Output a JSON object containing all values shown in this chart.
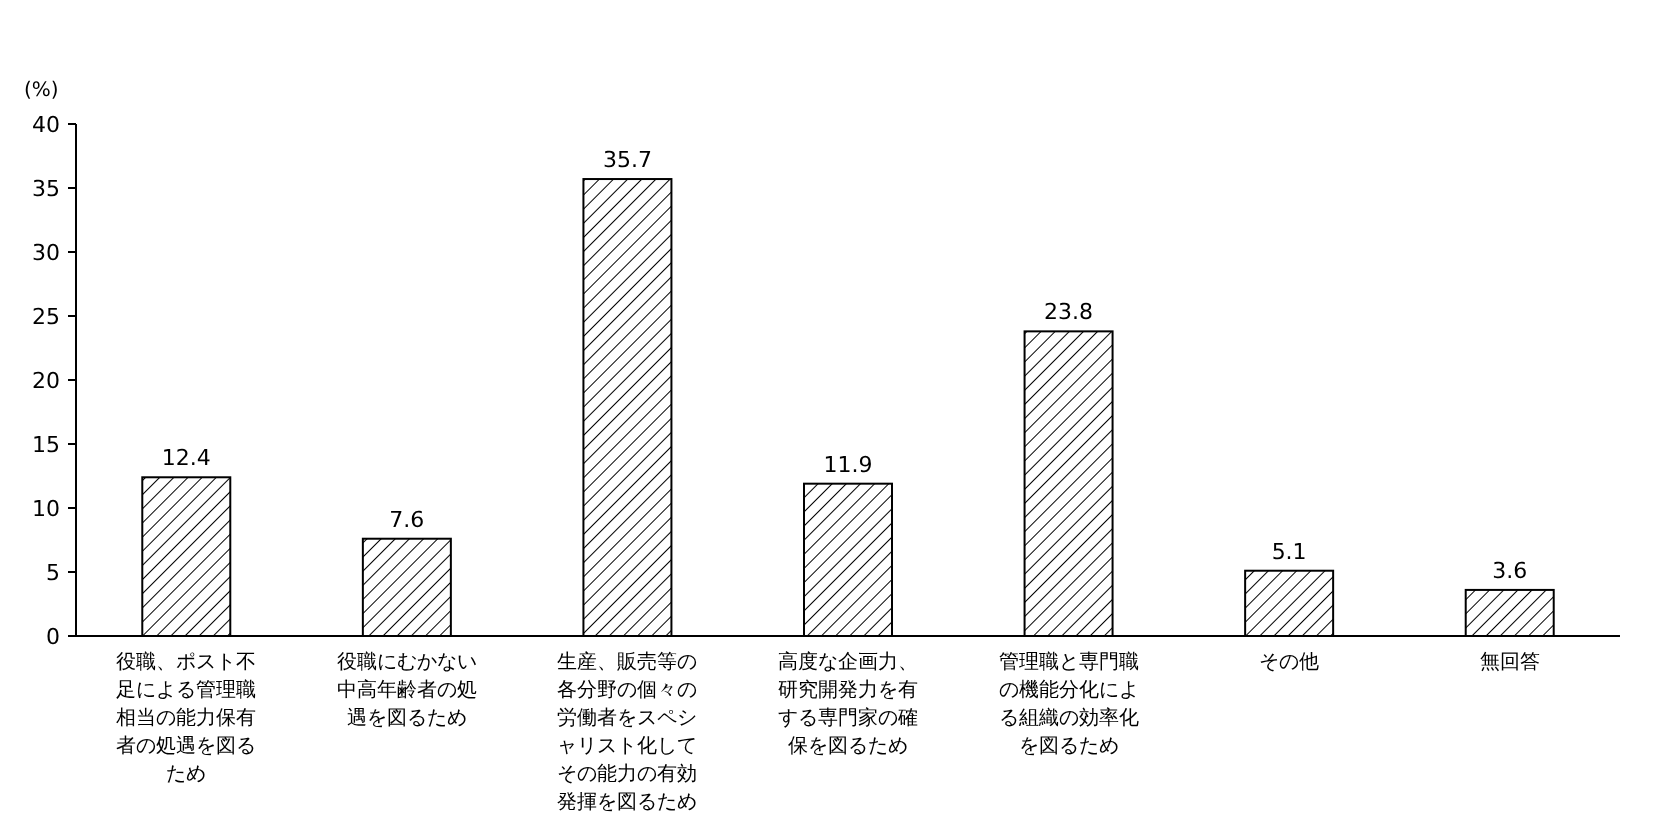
{
  "chart_data": {
    "type": "bar",
    "ylabel": "(%)",
    "categories": [
      "役職、ポスト不足による管理職相当の能力保有者の処遇を図るため",
      "役職にむかない中高年齢者の処遇を図るため",
      "生産、販売等の各分野の個々の労働者をスペシャリスト化してその能力の有効発揮を図るため",
      "高度な企画力、研究開発力を有する専門家の確保を図るため",
      "管理職と専門職の機能分化による組織の効率化を図るため",
      "その他",
      "無回答"
    ],
    "values": [
      12.4,
      7.6,
      35.7,
      11.9,
      23.8,
      5.1,
      3.6
    ],
    "color": "#000000",
    "ylim": [
      0,
      40
    ],
    "yticks": [
      0,
      5,
      10,
      15,
      20,
      25,
      30,
      35,
      40
    ],
    "data_labels": true
  }
}
